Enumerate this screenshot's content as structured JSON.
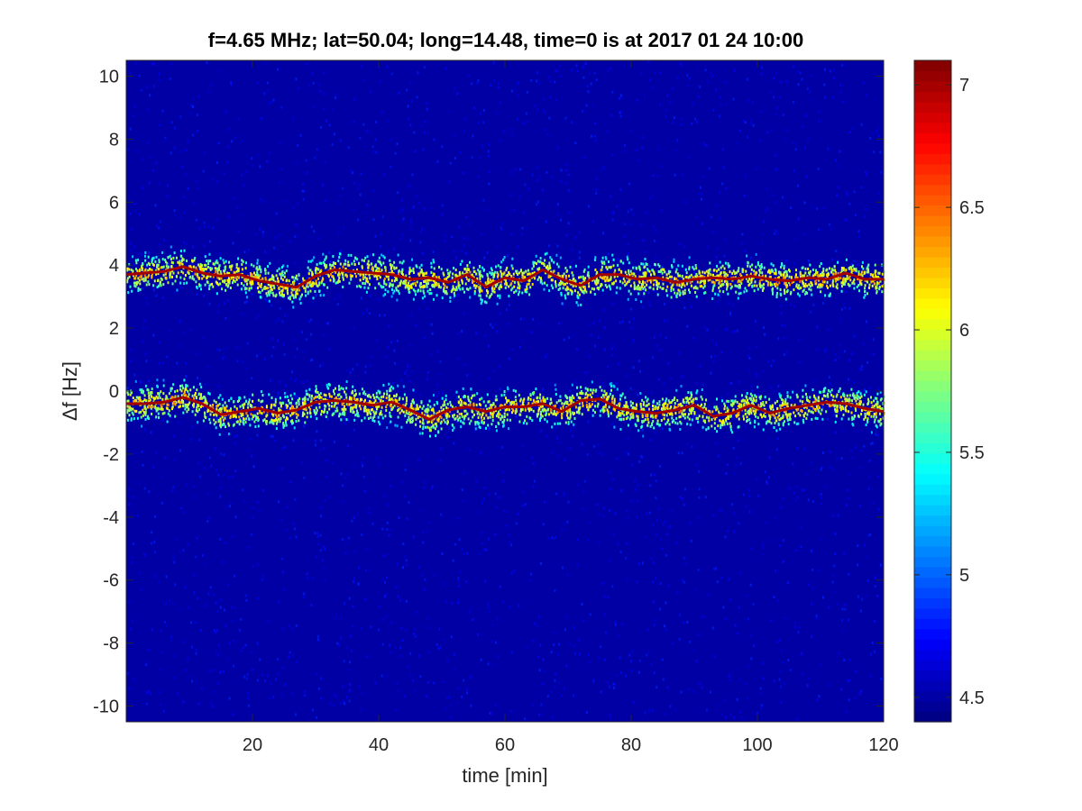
{
  "chart_data": {
    "type": "heatmap",
    "title": "f=4.65 MHz;  lat=50.04; long=14.48, time=0 is at 2017 01 24 10:00",
    "xlabel": "time [min]",
    "ylabel": "Δf [Hz]",
    "xlim": [
      0,
      120
    ],
    "ylim": [
      -10.5,
      10.5
    ],
    "xticks": [
      20,
      40,
      60,
      80,
      100,
      120
    ],
    "yticks": [
      10,
      8,
      6,
      4,
      2,
      0,
      -2,
      -4,
      -6,
      -8,
      -10
    ],
    "colorbar": {
      "colormap": "jet",
      "range": [
        4.4,
        7.1
      ],
      "ticks": [
        7,
        6.5,
        6,
        5.5,
        5,
        4.5
      ]
    },
    "background_level": 4.5,
    "series": [
      {
        "peak_level": 7.0,
        "x": [
          0,
          3,
          6,
          9,
          12,
          15,
          18,
          21,
          24,
          27,
          30,
          33,
          36,
          39,
          42,
          45,
          48,
          51,
          54,
          57,
          60,
          63,
          66,
          69,
          72,
          75,
          78,
          81,
          84,
          87,
          90,
          93,
          96,
          99,
          102,
          105,
          108,
          111,
          114,
          117,
          120
        ],
        "y": [
          3.7,
          3.75,
          3.8,
          3.95,
          3.75,
          3.65,
          3.7,
          3.5,
          3.4,
          3.3,
          3.65,
          3.85,
          3.8,
          3.75,
          3.7,
          3.55,
          3.6,
          3.45,
          3.7,
          3.3,
          3.6,
          3.5,
          3.85,
          3.55,
          3.35,
          3.7,
          3.7,
          3.55,
          3.6,
          3.45,
          3.55,
          3.6,
          3.55,
          3.65,
          3.55,
          3.5,
          3.6,
          3.55,
          3.75,
          3.55,
          3.55
        ]
      },
      {
        "peak_level": 7.0,
        "x": [
          0,
          3,
          6,
          9,
          12,
          15,
          18,
          21,
          24,
          27,
          30,
          33,
          36,
          39,
          42,
          45,
          48,
          51,
          54,
          57,
          60,
          63,
          66,
          69,
          72,
          75,
          78,
          81,
          84,
          87,
          90,
          93,
          96,
          99,
          102,
          105,
          108,
          111,
          114,
          117,
          120
        ],
        "y": [
          -0.4,
          -0.4,
          -0.35,
          -0.2,
          -0.4,
          -0.75,
          -0.65,
          -0.55,
          -0.7,
          -0.6,
          -0.35,
          -0.3,
          -0.35,
          -0.45,
          -0.35,
          -0.6,
          -0.9,
          -0.6,
          -0.5,
          -0.65,
          -0.5,
          -0.5,
          -0.4,
          -0.65,
          -0.3,
          -0.25,
          -0.55,
          -0.65,
          -0.7,
          -0.6,
          -0.45,
          -0.8,
          -0.7,
          -0.45,
          -0.7,
          -0.55,
          -0.45,
          -0.35,
          -0.4,
          -0.55,
          -0.65
        ]
      }
    ]
  }
}
